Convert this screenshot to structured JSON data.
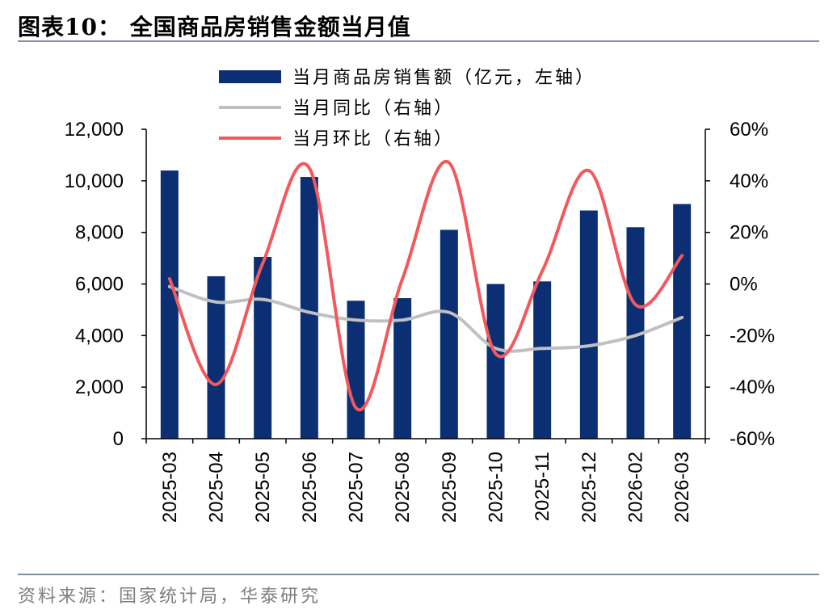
{
  "figure_title": "图表10：  全国商品房销售金额当月值",
  "source_note": "资料来源：国家统计局，华泰研究",
  "colors": {
    "bar": "#0b2f72",
    "yoy": "#c0c0c0",
    "mom": "#f2595c",
    "rule": "#7f8ea3"
  },
  "chart_data": {
    "type": "bar",
    "title": "全国商品房销售金额当月值",
    "categories": [
      "2025-03",
      "2025-04",
      "2025-05",
      "2025-06",
      "2025-07",
      "2025-08",
      "2025-09",
      "2025-10",
      "2025-11",
      "2025-12",
      "2026-02",
      "2026-03"
    ],
    "series": [
      {
        "name": "当月商品房销售额（亿元，左轴）",
        "type": "bar",
        "axis": "left",
        "values": [
          10400,
          6300,
          7050,
          10150,
          5350,
          5450,
          8100,
          6000,
          6100,
          8850,
          8200,
          9100
        ]
      },
      {
        "name": "当月同比（右轴）",
        "type": "line",
        "axis": "right",
        "values": [
          -1,
          -7,
          -6,
          -11,
          -14,
          -14,
          -11,
          -25,
          -25,
          -24,
          -20,
          -13
        ]
      },
      {
        "name": "当月环比（右轴）",
        "type": "line",
        "axis": "right",
        "values": [
          2,
          -39,
          8,
          45,
          -48,
          2,
          47,
          -27,
          5,
          44,
          -8,
          11
        ]
      }
    ],
    "left_axis": {
      "ylim": [
        0,
        12000
      ],
      "ticks": [
        0,
        2000,
        4000,
        6000,
        8000,
        10000,
        12000
      ],
      "tick_labels": [
        "0",
        "2,000",
        "4,000",
        "6,000",
        "8,000",
        "10,000",
        "12,000"
      ]
    },
    "right_axis": {
      "ylim": [
        -60,
        60
      ],
      "ticks": [
        -60,
        -40,
        -20,
        0,
        20,
        40,
        60
      ],
      "tick_labels": [
        "-60%",
        "-40%",
        "-20%",
        "0%",
        "20%",
        "40%",
        "60%"
      ]
    },
    "legend": {
      "placement": "top-center"
    },
    "grid": false
  }
}
